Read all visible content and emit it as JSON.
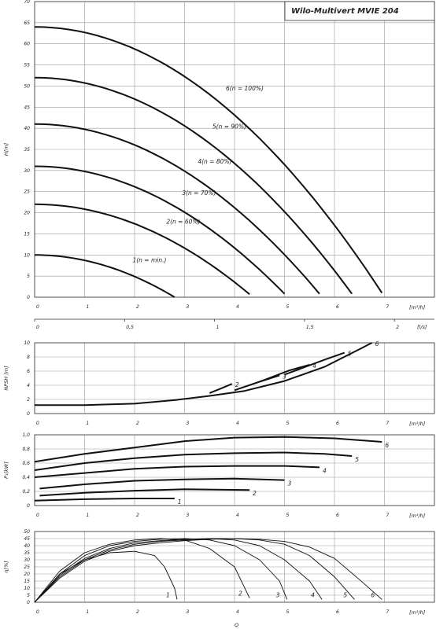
{
  "title": "Wilo-Multivert MVIE 204",
  "xaxis_unit": "[m³/h]",
  "xaxis_unit_ls": "[l/s]",
  "bottom_label": "Q",
  "colors": {
    "grid": "#9a9a9a",
    "curve": "#111111",
    "frame": "#333333"
  },
  "chart_data": [
    {
      "id": "head",
      "type": "line",
      "ylabel": "H[m]",
      "xlim": [
        0,
        8
      ],
      "ylim": [
        0,
        70
      ],
      "xticks": [
        "0",
        "1",
        "2",
        "3",
        "4",
        "5",
        "6",
        "7"
      ],
      "yticks": [
        "0",
        "5",
        "10",
        "15",
        "20",
        "25",
        "30",
        "35",
        "40",
        "45",
        "50",
        "55",
        "60",
        "65",
        "70"
      ],
      "secondary_xaxis": {
        "unit": "[l/s]",
        "ticks": [
          "0",
          "0,5",
          "1",
          "1,5",
          "2"
        ],
        "values": [
          0,
          0.5,
          1,
          1.5,
          2
        ]
      },
      "series": [
        {
          "name": "1(n = min.)",
          "H0": 10,
          "Qmax": 2.8,
          "Hend": 0
        },
        {
          "name": "2(n = 60%)",
          "H0": 22,
          "Qmax": 4.3,
          "Hend": 0.7
        },
        {
          "name": "3(n = 70%)",
          "H0": 31,
          "Qmax": 5.0,
          "Hend": 0.8
        },
        {
          "name": "4(n = 80%)",
          "H0": 41,
          "Qmax": 5.7,
          "Hend": 0.8
        },
        {
          "name": "5(n = 90%)",
          "H0": 52,
          "Qmax": 6.35,
          "Hend": 0.8
        },
        {
          "name": "6(n = 100%)",
          "H0": 64,
          "Qmax": 6.95,
          "Hend": 1.0
        }
      ]
    },
    {
      "id": "npsh",
      "type": "line",
      "ylabel": "NPSH [m]",
      "xlim": [
        0,
        8
      ],
      "ylim": [
        0,
        10
      ],
      "xticks": [
        "0",
        "1",
        "2",
        "3",
        "4",
        "5",
        "6",
        "7"
      ],
      "yticks": [
        "0",
        "2",
        "4",
        "6",
        "8",
        "10"
      ],
      "series": [
        {
          "name": "2",
          "points": [
            [
              3.5,
              2.9
            ],
            [
              3.75,
              3.6
            ],
            [
              3.95,
              4.2
            ]
          ]
        },
        {
          "name": "3",
          "points": [
            [
              4.0,
              3.3
            ],
            [
              4.5,
              4.5
            ],
            [
              4.9,
              5.4
            ]
          ]
        },
        {
          "name": "4",
          "points": [
            [
              4.5,
              4.5
            ],
            [
              5.1,
              6.1
            ],
            [
              5.5,
              6.9
            ]
          ]
        },
        {
          "name": "5",
          "points": [
            [
              5.0,
              5.5
            ],
            [
              5.8,
              7.6
            ],
            [
              6.2,
              8.6
            ]
          ]
        },
        {
          "name": "6",
          "points": [
            [
              0,
              1.2
            ],
            [
              1,
              1.2
            ],
            [
              2,
              1.4
            ],
            [
              2.8,
              1.9
            ],
            [
              3.5,
              2.5
            ],
            [
              4.2,
              3.2
            ],
            [
              5.0,
              4.6
            ],
            [
              5.8,
              6.6
            ],
            [
              6.5,
              9.1
            ],
            [
              6.75,
              10.0
            ]
          ]
        }
      ]
    },
    {
      "id": "power",
      "type": "line",
      "ylabel": "P₁[kW]",
      "xlim": [
        0,
        8
      ],
      "ylim": [
        0,
        1.0
      ],
      "xticks": [
        "0",
        "1",
        "2",
        "3",
        "4",
        "5",
        "6",
        "7"
      ],
      "yticks": [
        "0",
        "0,2",
        "0,4",
        "0,6",
        "0,8",
        "1,0"
      ],
      "series": [
        {
          "name": "1",
          "points": [
            [
              0,
              0.07
            ],
            [
              1,
              0.09
            ],
            [
              2,
              0.1
            ],
            [
              2.8,
              0.1
            ]
          ]
        },
        {
          "name": "2",
          "points": [
            [
              0.1,
              0.14
            ],
            [
              1,
              0.18
            ],
            [
              2,
              0.21
            ],
            [
              3,
              0.23
            ],
            [
              4.3,
              0.22
            ]
          ]
        },
        {
          "name": "3",
          "points": [
            [
              0.1,
              0.24
            ],
            [
              1,
              0.3
            ],
            [
              2,
              0.35
            ],
            [
              3,
              0.37
            ],
            [
              4,
              0.38
            ],
            [
              5.0,
              0.36
            ]
          ]
        },
        {
          "name": "4",
          "points": [
            [
              0,
              0.4
            ],
            [
              1,
              0.46
            ],
            [
              2,
              0.52
            ],
            [
              3,
              0.55
            ],
            [
              4,
              0.56
            ],
            [
              5,
              0.56
            ],
            [
              5.7,
              0.54
            ]
          ]
        },
        {
          "name": "5",
          "points": [
            [
              0,
              0.5
            ],
            [
              1,
              0.6
            ],
            [
              2,
              0.67
            ],
            [
              3,
              0.72
            ],
            [
              4,
              0.74
            ],
            [
              5,
              0.75
            ],
            [
              5.8,
              0.73
            ],
            [
              6.35,
              0.7
            ]
          ]
        },
        {
          "name": "6",
          "points": [
            [
              0,
              0.62
            ],
            [
              1,
              0.73
            ],
            [
              2,
              0.82
            ],
            [
              3,
              0.91
            ],
            [
              4,
              0.96
            ],
            [
              5,
              0.97
            ],
            [
              6,
              0.95
            ],
            [
              6.95,
              0.9
            ]
          ]
        }
      ]
    },
    {
      "id": "efficiency",
      "type": "line",
      "ylabel": "η[%]",
      "xlim": [
        0,
        8
      ],
      "ylim": [
        0,
        50
      ],
      "xticks": [
        "0",
        "1",
        "2",
        "3",
        "4",
        "5",
        "6",
        "7"
      ],
      "yticks": [
        "0",
        "5",
        "10",
        "15",
        "20",
        "25",
        "30",
        "35",
        "40",
        "45",
        "50"
      ],
      "series": [
        {
          "name": "1",
          "points": [
            [
              0,
              0
            ],
            [
              0.5,
              20
            ],
            [
              1,
              30
            ],
            [
              1.5,
              35
            ],
            [
              2,
              36
            ],
            [
              2.4,
              33
            ],
            [
              2.6,
              25
            ],
            [
              2.8,
              10
            ],
            [
              2.85,
              2
            ]
          ]
        },
        {
          "name": "2",
          "points": [
            [
              0,
              0
            ],
            [
              0.5,
              22
            ],
            [
              1,
              35
            ],
            [
              1.5,
              41
            ],
            [
              2,
              44
            ],
            [
              2.5,
              45
            ],
            [
              3,
              44
            ],
            [
              3.5,
              38
            ],
            [
              4,
              25
            ],
            [
              4.3,
              3
            ]
          ]
        },
        {
          "name": "3",
          "points": [
            [
              0,
              0
            ],
            [
              0.5,
              20
            ],
            [
              1,
              33
            ],
            [
              1.5,
              40
            ],
            [
              2,
              43
            ],
            [
              2.5,
              44.5
            ],
            [
              3,
              45
            ],
            [
              3.5,
              44
            ],
            [
              4,
              40
            ],
            [
              4.5,
              30
            ],
            [
              4.9,
              15
            ],
            [
              5.05,
              2
            ]
          ]
        },
        {
          "name": "4",
          "points": [
            [
              0,
              0
            ],
            [
              0.5,
              19
            ],
            [
              1,
              31
            ],
            [
              1.5,
              38
            ],
            [
              2,
              42
            ],
            [
              2.5,
              43.5
            ],
            [
              3,
              44.5
            ],
            [
              3.5,
              45
            ],
            [
              4,
              44
            ],
            [
              4.5,
              40
            ],
            [
              5,
              30
            ],
            [
              5.5,
              15
            ],
            [
              5.75,
              2
            ]
          ]
        },
        {
          "name": "5",
          "points": [
            [
              0,
              0
            ],
            [
              0.5,
              18
            ],
            [
              1,
              30
            ],
            [
              1.5,
              37
            ],
            [
              2,
              41
            ],
            [
              2.5,
              43
            ],
            [
              3,
              44
            ],
            [
              3.5,
              45
            ],
            [
              4,
              45
            ],
            [
              4.5,
              44
            ],
            [
              5,
              41
            ],
            [
              5.5,
              33
            ],
            [
              6,
              18
            ],
            [
              6.4,
              2
            ]
          ]
        },
        {
          "name": "6",
          "points": [
            [
              0,
              0
            ],
            [
              0.5,
              17
            ],
            [
              1,
              29
            ],
            [
              1.5,
              36
            ],
            [
              2,
              40
            ],
            [
              2.5,
              42
            ],
            [
              3,
              43.5
            ],
            [
              3.5,
              44.5
            ],
            [
              4,
              45
            ],
            [
              4.5,
              44.5
            ],
            [
              5,
              43
            ],
            [
              5.5,
              39
            ],
            [
              6,
              31
            ],
            [
              6.5,
              16
            ],
            [
              6.95,
              2
            ]
          ]
        }
      ]
    }
  ]
}
